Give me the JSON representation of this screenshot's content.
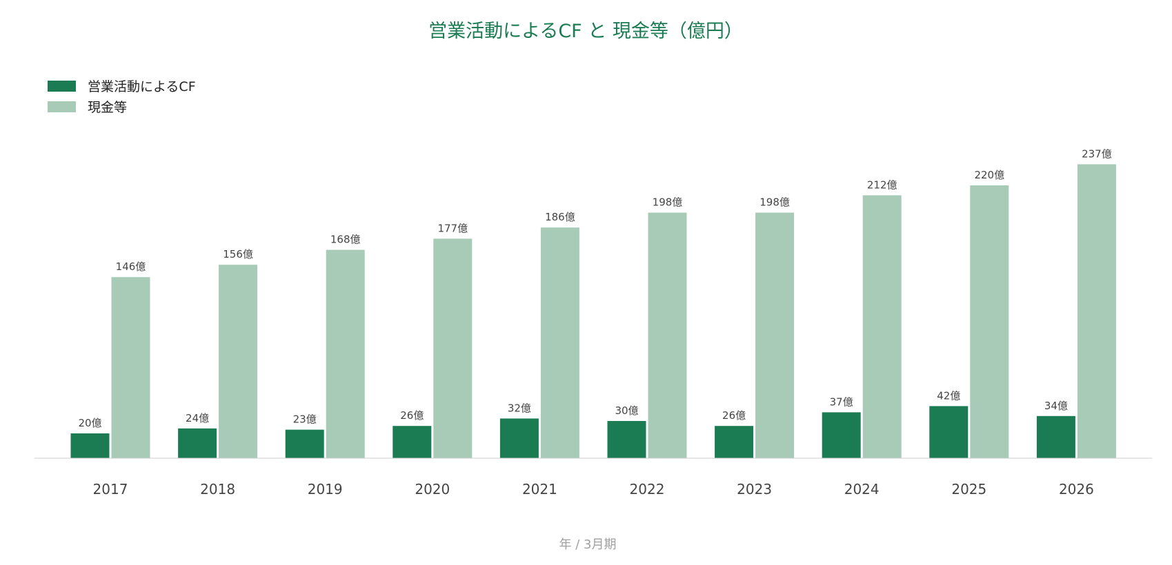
{
  "chart_data": {
    "type": "bar",
    "title": "営業活動によるCF と 現金等（億円）",
    "xlabel": "年 / 3月期",
    "ylabel": "",
    "categories": [
      "2017",
      "2018",
      "2019",
      "2020",
      "2021",
      "2022",
      "2023",
      "2024",
      "2025",
      "2026"
    ],
    "series": [
      {
        "name": "営業活動によるCF",
        "color": "#1b7c53",
        "values": [
          20,
          24,
          23,
          26,
          32,
          30,
          26,
          37,
          42,
          34
        ],
        "labels": [
          "20億",
          "24億",
          "23億",
          "26億",
          "32億",
          "30億",
          "26億",
          "37億",
          "42億",
          "34億"
        ]
      },
      {
        "name": "現金等",
        "color": "#a8cbb7",
        "values": [
          146,
          156,
          168,
          177,
          186,
          198,
          198,
          212,
          220,
          237
        ],
        "labels": [
          "146億",
          "156億",
          "168億",
          "177億",
          "186億",
          "198億",
          "198億",
          "212億",
          "220億",
          "237億"
        ]
      }
    ],
    "ylim": [
      0,
      237
    ],
    "grid": false,
    "legend_position": "top-left",
    "colors": {
      "title": "#1b7c53",
      "axis_line": "#cccccc",
      "xlabel": "#a0a0a0"
    }
  }
}
